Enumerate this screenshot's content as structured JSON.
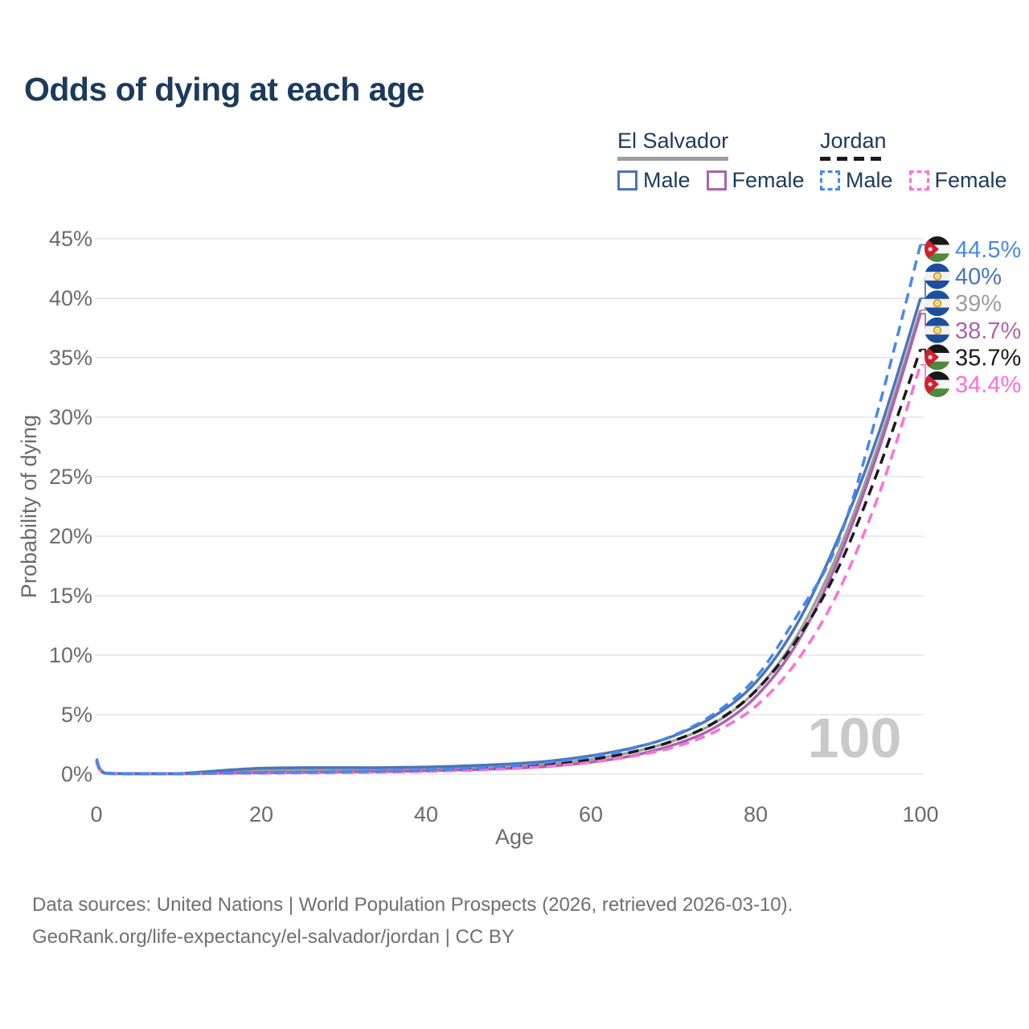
{
  "title": "Odds of dying at each age",
  "legend": {
    "groups": [
      {
        "label": "El Salvador",
        "style": "solid",
        "color": "#9e9e9e",
        "items": [
          {
            "label": "Male",
            "color": "#4a74b8"
          },
          {
            "label": "Female",
            "color": "#ad62ad"
          }
        ]
      },
      {
        "label": "Jordan",
        "style": "dashed",
        "color": "#1a1a1a",
        "items": [
          {
            "label": "Male",
            "color": "#4787f0"
          },
          {
            "label": "Female",
            "color": "#ff6ed8"
          }
        ]
      }
    ]
  },
  "watermark": "100",
  "footer": {
    "line1": "Data sources: United Nations | World Population Prospects (2026, retrieved 2026-03-10).",
    "line2": "GeoRank.org/life-expectancy/el-salvador/jordan | CC BY"
  },
  "chart_data": {
    "type": "line",
    "title": "Odds of dying at each age",
    "xlabel": "Age",
    "ylabel": "Probability of dying",
    "xlim": [
      0,
      100
    ],
    "ylim": [
      0,
      45
    ],
    "x_ticks": [
      0,
      20,
      40,
      60,
      80,
      100
    ],
    "y_ticks": [
      0,
      5,
      10,
      15,
      20,
      25,
      30,
      35,
      40,
      45
    ],
    "y_tick_suffix": "%",
    "grid": "horizontal",
    "legend_position": "top-right",
    "x": [
      0,
      1,
      5,
      10,
      15,
      20,
      25,
      30,
      35,
      40,
      45,
      50,
      55,
      60,
      65,
      70,
      75,
      80,
      85,
      90,
      95,
      100
    ],
    "series": [
      {
        "name": "El Salvador Both sexes",
        "country": "El Salvador",
        "sex": "Both",
        "style": "solid",
        "color": "#9e9e9e",
        "end_label": "39%",
        "end_value": 39.0,
        "flag": "el-salvador",
        "values": [
          1.2,
          0.09,
          0.04,
          0.04,
          0.18,
          0.3,
          0.33,
          0.35,
          0.38,
          0.44,
          0.52,
          0.65,
          0.88,
          1.25,
          1.85,
          2.8,
          4.3,
          7.0,
          11.6,
          18.6,
          27.9,
          39.0
        ]
      },
      {
        "name": "El Salvador Female",
        "country": "El Salvador",
        "sex": "Female",
        "style": "solid",
        "color": "#ad62ad",
        "end_label": "38.7%",
        "end_value": 38.7,
        "flag": "el-salvador",
        "values": [
          1.1,
          0.08,
          0.03,
          0.03,
          0.08,
          0.12,
          0.15,
          0.18,
          0.22,
          0.28,
          0.37,
          0.48,
          0.66,
          1.0,
          1.55,
          2.45,
          3.9,
          6.5,
          11.0,
          18.0,
          27.4,
          38.7
        ]
      },
      {
        "name": "El Salvador Male",
        "country": "El Salvador",
        "sex": "Male",
        "style": "solid",
        "color": "#4a74b8",
        "end_label": "40%",
        "end_value": 40.0,
        "flag": "el-salvador",
        "values": [
          1.3,
          0.1,
          0.05,
          0.05,
          0.3,
          0.5,
          0.55,
          0.55,
          0.55,
          0.6,
          0.7,
          0.85,
          1.1,
          1.55,
          2.2,
          3.2,
          4.9,
          7.7,
          12.6,
          19.8,
          28.8,
          40.0
        ]
      },
      {
        "name": "Jordan Both sexes",
        "country": "Jordan",
        "sex": "Both",
        "style": "dashed",
        "color": "#1a1a1a",
        "end_label": "35.7%",
        "end_value": 35.7,
        "flag": "jordan",
        "values": [
          1.1,
          0.07,
          0.03,
          0.03,
          0.08,
          0.11,
          0.13,
          0.16,
          0.21,
          0.28,
          0.4,
          0.57,
          0.83,
          1.22,
          1.85,
          2.8,
          4.35,
          7.0,
          11.3,
          17.3,
          25.8,
          35.7
        ]
      },
      {
        "name": "Jordan Female",
        "country": "Jordan",
        "sex": "Female",
        "style": "dashed",
        "color": "#ff6ed8",
        "end_label": "34.4%",
        "end_value": 34.4,
        "flag": "jordan",
        "values": [
          1.0,
          0.06,
          0.03,
          0.03,
          0.06,
          0.08,
          0.1,
          0.13,
          0.17,
          0.23,
          0.32,
          0.46,
          0.67,
          1.0,
          1.5,
          2.25,
          3.55,
          5.7,
          9.5,
          15.3,
          23.6,
          34.4
        ]
      },
      {
        "name": "Jordan Male",
        "country": "Jordan",
        "sex": "Male",
        "style": "dashed",
        "color": "#4787f0",
        "end_label": "44.5%",
        "end_value": 44.5,
        "flag": "jordan",
        "values": [
          1.2,
          0.08,
          0.03,
          0.03,
          0.09,
          0.13,
          0.16,
          0.2,
          0.25,
          0.33,
          0.47,
          0.68,
          1.0,
          1.45,
          2.15,
          3.25,
          5.1,
          8.1,
          13.3,
          19.5,
          31.0,
          44.5
        ]
      }
    ]
  }
}
